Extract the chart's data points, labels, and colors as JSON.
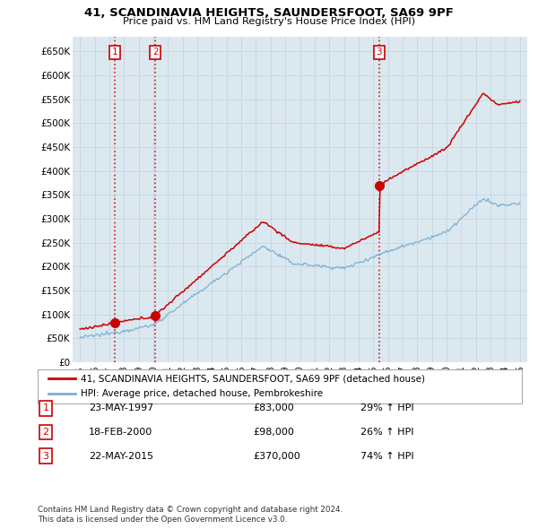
{
  "title": "41, SCANDINAVIA HEIGHTS, SAUNDERSFOOT, SA69 9PF",
  "subtitle": "Price paid vs. HM Land Registry's House Price Index (HPI)",
  "ylabel_ticks": [
    "£0",
    "£50K",
    "£100K",
    "£150K",
    "£200K",
    "£250K",
    "£300K",
    "£350K",
    "£400K",
    "£450K",
    "£500K",
    "£550K",
    "£600K",
    "£650K"
  ],
  "ytick_values": [
    0,
    50000,
    100000,
    150000,
    200000,
    250000,
    300000,
    350000,
    400000,
    450000,
    500000,
    550000,
    600000,
    650000
  ],
  "xlim_start": 1994.5,
  "xlim_end": 2025.5,
  "ylim_min": 0,
  "ylim_max": 680000,
  "sale_color": "#cc0000",
  "hpi_color": "#7ab0d4",
  "plot_bg": "#dce8f0",
  "sale_label": "41, SCANDINAVIA HEIGHTS, SAUNDERSFOOT, SA69 9PF (detached house)",
  "hpi_label": "HPI: Average price, detached house, Pembrokeshire",
  "transactions": [
    {
      "num": 1,
      "date_label": "23-MAY-1997",
      "price": 83000,
      "price_label": "£83,000",
      "hpi_pct": "29% ↑ HPI",
      "year": 1997.39
    },
    {
      "num": 2,
      "date_label": "18-FEB-2000",
      "price": 98000,
      "price_label": "£98,000",
      "hpi_pct": "26% ↑ HPI",
      "year": 2000.13
    },
    {
      "num": 3,
      "date_label": "22-MAY-2015",
      "price": 370000,
      "price_label": "£370,000",
      "hpi_pct": "74% ↑ HPI",
      "year": 2015.39
    }
  ],
  "footer_line1": "Contains HM Land Registry data © Crown copyright and database right 2024.",
  "footer_line2": "This data is licensed under the Open Government Licence v3.0.",
  "background_color": "#ffffff",
  "grid_color": "#c8d8e0"
}
